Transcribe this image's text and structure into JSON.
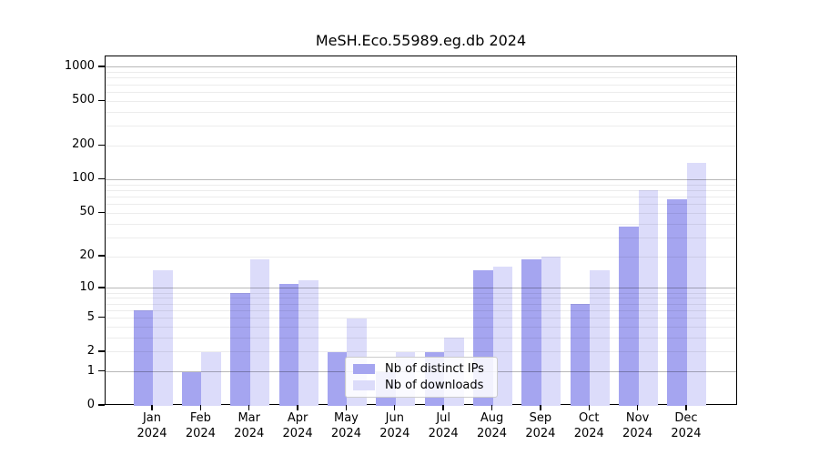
{
  "title": "MeSH.Eco.55989.eg.db 2024",
  "chart_data": {
    "type": "bar",
    "title": "MeSH.Eco.55989.eg.db 2024",
    "categories": [
      "Jan",
      "Feb",
      "Mar",
      "Apr",
      "May",
      "Jun",
      "Jul",
      "Aug",
      "Sep",
      "Oct",
      "Nov",
      "Dec"
    ],
    "category_year": "2024",
    "series": [
      {
        "name": "Nb of distinct IPs",
        "color": "#a5a5f0",
        "values": [
          6,
          1,
          9,
          11,
          2,
          1,
          2,
          15,
          19,
          7,
          38,
          67
        ]
      },
      {
        "name": "Nb of downloads",
        "color": "#dcdcfa",
        "values": [
          15,
          2,
          19,
          12,
          5,
          2,
          3,
          16,
          20,
          15,
          80,
          140
        ]
      }
    ],
    "xlabel": "",
    "ylabel": "",
    "yscale": "log1p",
    "yticks": [
      0,
      1,
      2,
      5,
      10,
      20,
      50,
      100,
      200,
      500,
      1000
    ],
    "ylim": [
      0,
      1250
    ],
    "grid": "minor log gridlines light, decade gridlines darker, drawn over bars",
    "legend_position": "inside lower-center"
  },
  "legend": {
    "items": [
      {
        "label": "Nb of distinct IPs"
      },
      {
        "label": "Nb of downloads"
      }
    ]
  }
}
